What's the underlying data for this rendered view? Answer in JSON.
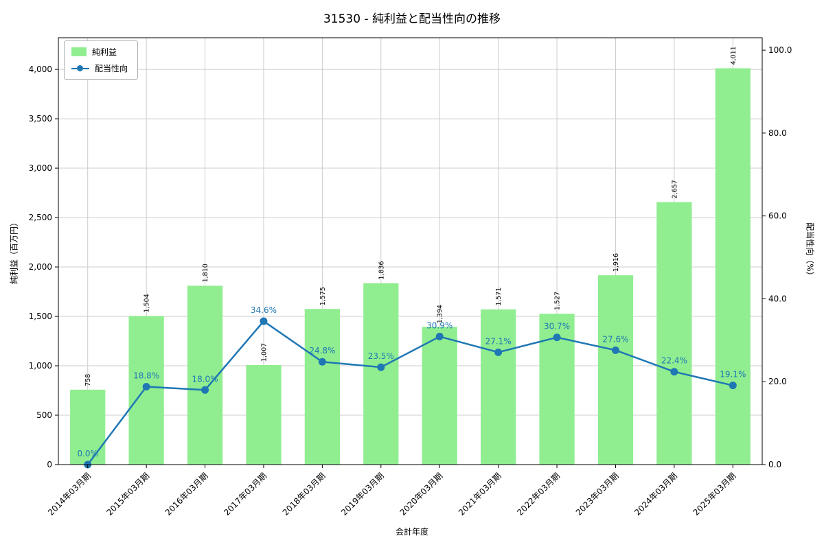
{
  "title": "31530 - 純利益と配当性向の推移",
  "chart_data": {
    "type": "bar+line",
    "categories": [
      "2014年03月期",
      "2015年03月期",
      "2016年03月期",
      "2017年03月期",
      "2018年03月期",
      "2019年03月期",
      "2020年03月期",
      "2021年03月期",
      "2022年03月期",
      "2023年03月期",
      "2024年03月期",
      "2025年03月期"
    ],
    "series": [
      {
        "name": "純利益",
        "type": "bar",
        "axis": "left",
        "color": "#90ee90",
        "values": [
          758,
          1504,
          1810,
          1007,
          1575,
          1836,
          1394,
          1571,
          1527,
          1916,
          2657,
          4011
        ]
      },
      {
        "name": "配当性向",
        "type": "line",
        "axis": "right",
        "color": "#1f77b4",
        "values": [
          0.0,
          18.8,
          18.0,
          34.6,
          24.8,
          23.5,
          30.9,
          27.1,
          30.7,
          27.6,
          22.4,
          19.1
        ]
      }
    ],
    "xlabel": "会計年度",
    "ylabel_left": "純利益（百万円）",
    "ylabel_right": "配当性向（%）",
    "ylim_left": [
      0,
      4320
    ],
    "ylim_right": [
      0,
      103
    ],
    "yticks_left": [
      0,
      500,
      1000,
      1500,
      2000,
      2500,
      3000,
      3500,
      4000
    ],
    "yticks_right": [
      0.0,
      20.0,
      40.0,
      60.0,
      80.0,
      100.0
    ],
    "grid": true,
    "legend_position": "upper left",
    "grid_color": "#cccccc",
    "spine_color": "#000000",
    "text_color": "#000000"
  }
}
